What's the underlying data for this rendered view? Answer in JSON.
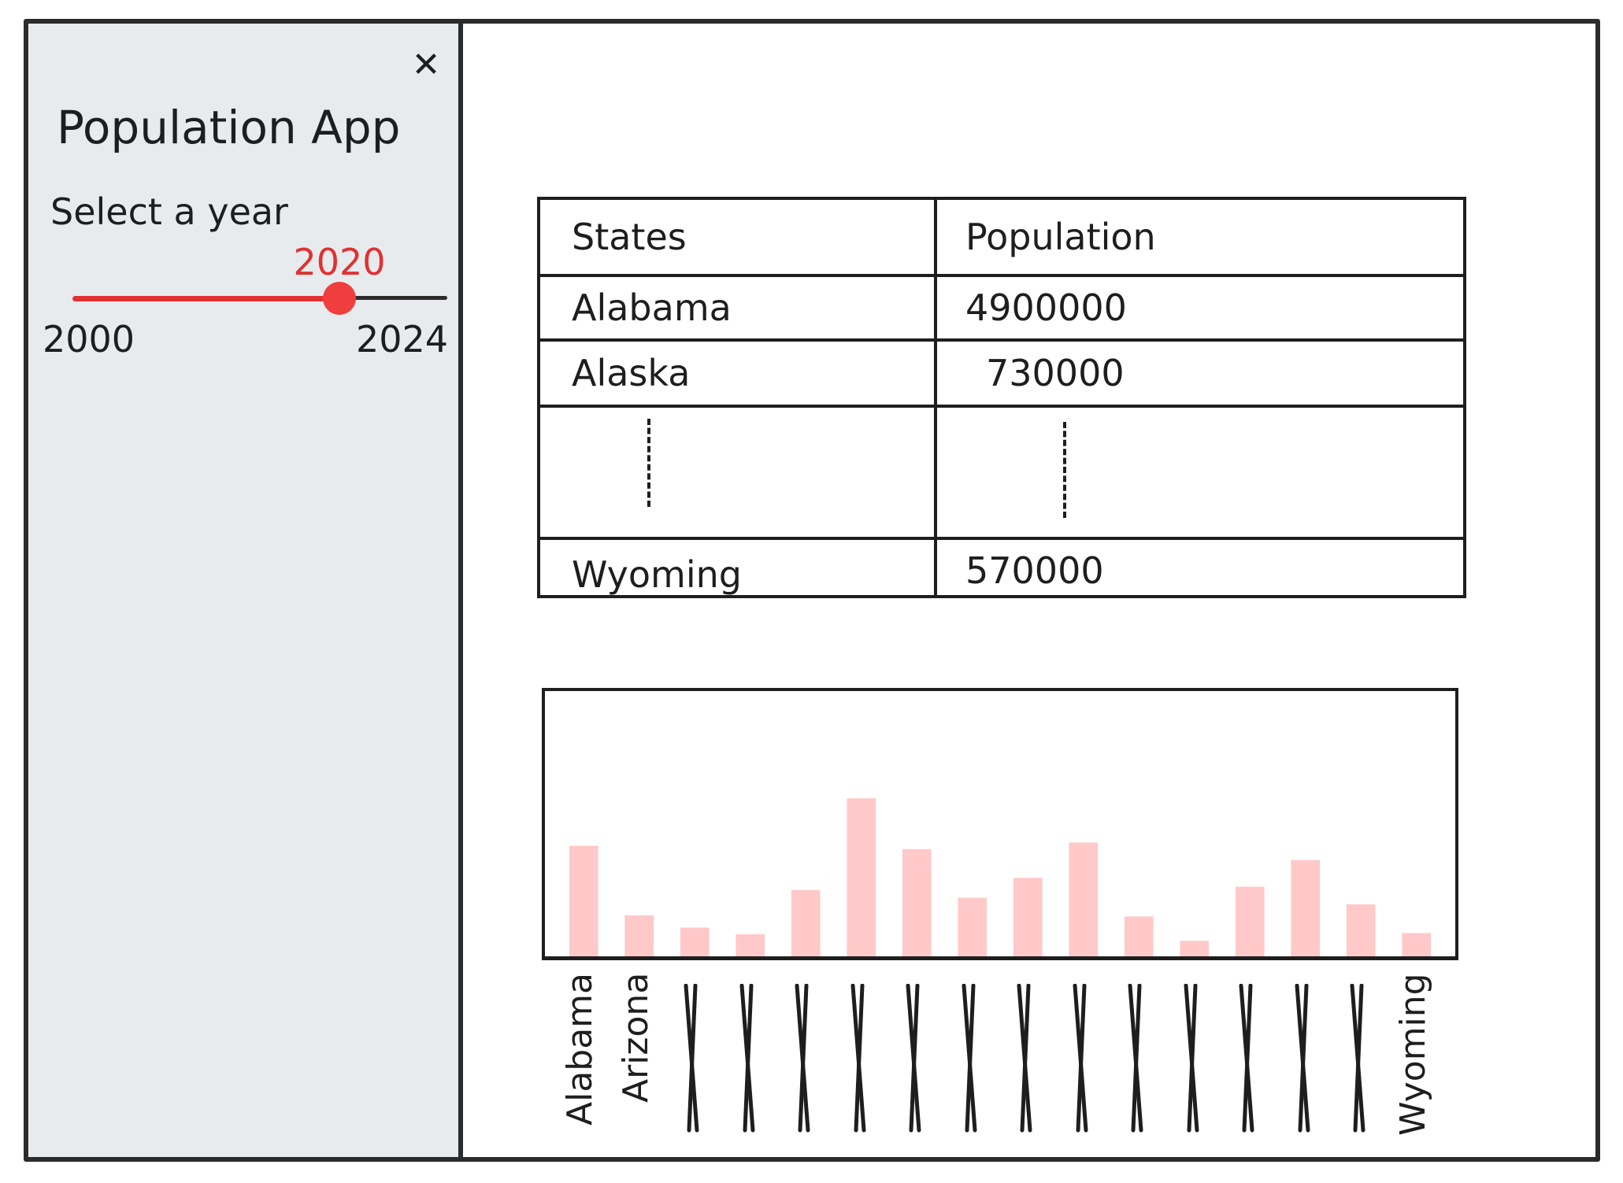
{
  "sidebar": {
    "title": "Population App",
    "select_label": "Select a year",
    "slider": {
      "min": 2000,
      "max": 2024,
      "value": 2020,
      "min_label": "2000",
      "max_label": "2024",
      "value_label": "2020"
    },
    "close_icon": "close-icon"
  },
  "table": {
    "headers": [
      "States",
      "Population"
    ],
    "rows": [
      {
        "state": "Alabama",
        "population": "4900000"
      },
      {
        "state": "Alaska",
        "population": "730000"
      },
      {
        "state": "Wyoming",
        "population": "570000"
      }
    ]
  },
  "colors": {
    "bar": "#ffc9c9",
    "accent": "#e03131",
    "sidebar_bg": "#e8ebee"
  },
  "chart_data": {
    "type": "bar",
    "categories": [
      "Alabama",
      "Arizona",
      "",
      "",
      "",
      "",
      "",
      "",
      "",
      "",
      "",
      "",
      "",
      "",
      "",
      "Wyoming"
    ],
    "values": [
      100,
      37,
      26,
      20,
      60,
      143,
      97,
      53,
      71,
      103,
      36,
      14,
      63,
      87,
      47,
      21
    ],
    "ylim": [
      0,
      240
    ],
    "title": "",
    "xlabel": "",
    "ylabel": ""
  }
}
